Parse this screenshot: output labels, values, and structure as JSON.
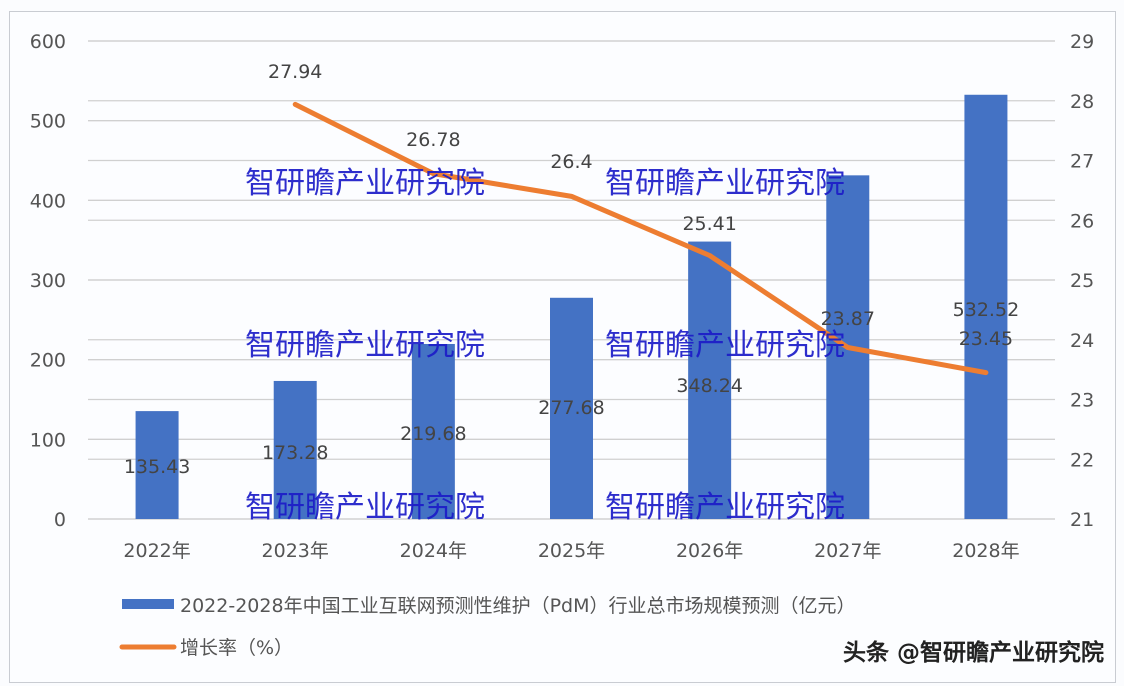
{
  "chart_data": {
    "type": "bar+line",
    "title": "",
    "categories": [
      "2022年",
      "2023年",
      "2024年",
      "2025年",
      "2026年",
      "2027年",
      "2028年"
    ],
    "series": [
      {
        "name": "2022-2028年中国工业互联网预测性维护（PdM）行业总市场规模预测（亿元）",
        "type": "bar",
        "axis": "left",
        "color": "#4472c4",
        "values": [
          135.43,
          173.28,
          219.68,
          277.68,
          348.24,
          431.37,
          532.52
        ],
        "labels": [
          "135.43",
          "173.28",
          "219.68",
          "277.68",
          "348.24",
          "",
          "532.52"
        ]
      },
      {
        "name": "增长率（%）",
        "type": "line",
        "axis": "right",
        "color": "#ed7d31",
        "values": [
          null,
          27.94,
          26.78,
          26.4,
          25.41,
          23.87,
          23.45
        ],
        "labels": [
          "",
          "27.94",
          "26.78",
          "26.4",
          "25.41",
          "23.87",
          "23.45"
        ]
      }
    ],
    "left_axis": {
      "ticks": [
        "0",
        "100",
        "200",
        "300",
        "400",
        "500",
        "600"
      ],
      "ylim": [
        0,
        600
      ]
    },
    "right_axis": {
      "ticks": [
        "21",
        "22",
        "23",
        "24",
        "25",
        "26",
        "27",
        "28",
        "29"
      ],
      "ylim": [
        21,
        29
      ]
    },
    "grid": true,
    "legend_position": "bottom-left"
  },
  "watermark": "智研瞻产业研究院",
  "credit": "头条 @智研瞻产业研究院"
}
